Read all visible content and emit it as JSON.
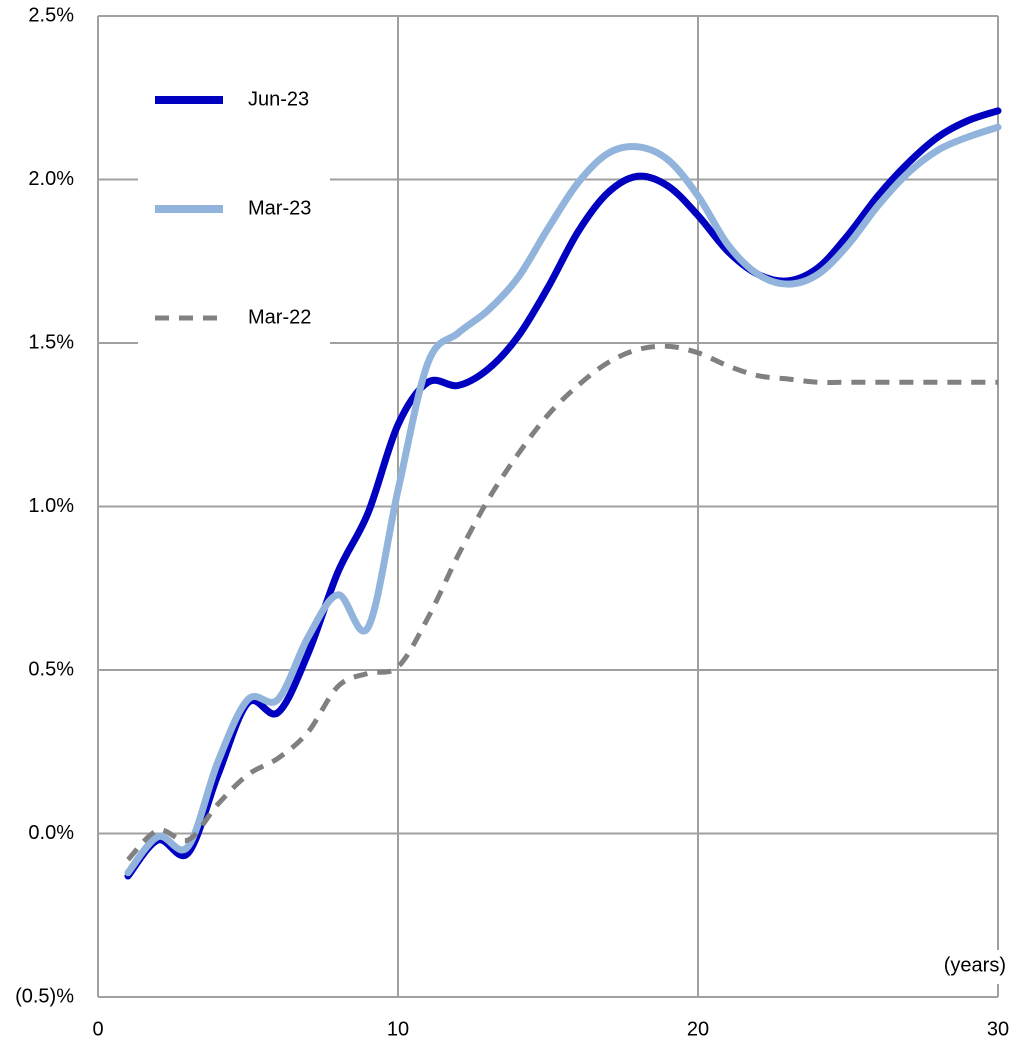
{
  "chart_data": {
    "type": "line",
    "x_label": "(years)",
    "x": [
      1,
      2,
      3,
      4,
      5,
      6,
      7,
      8,
      9,
      10,
      11,
      12,
      13,
      14,
      15,
      16,
      17,
      18,
      19,
      20,
      21,
      22,
      23,
      24,
      25,
      26,
      27,
      28,
      29,
      30
    ],
    "series": [
      {
        "name": "Jun-23",
        "color": "#0000c0",
        "line_style": "solid",
        "values": [
          -0.13,
          -0.02,
          -0.06,
          0.18,
          0.4,
          0.37,
          0.55,
          0.8,
          0.98,
          1.25,
          1.38,
          1.37,
          1.42,
          1.52,
          1.67,
          1.84,
          1.96,
          2.01,
          1.98,
          1.89,
          1.78,
          1.71,
          1.69,
          1.73,
          1.83,
          1.95,
          2.05,
          2.13,
          2.18,
          2.21
        ]
      },
      {
        "name": "Mar-23",
        "color": "#92b4dc",
        "line_style": "solid",
        "values": [
          -0.12,
          -0.01,
          -0.04,
          0.22,
          0.41,
          0.41,
          0.6,
          0.73,
          0.63,
          1.05,
          1.44,
          1.53,
          1.6,
          1.7,
          1.85,
          1.99,
          2.08,
          2.1,
          2.06,
          1.95,
          1.8,
          1.71,
          1.68,
          1.71,
          1.8,
          1.92,
          2.02,
          2.09,
          2.13,
          2.16
        ]
      },
      {
        "name": "Mar-22",
        "color": "#808080",
        "line_style": "dashed",
        "values": [
          -0.08,
          0.01,
          -0.02,
          0.09,
          0.18,
          0.23,
          0.31,
          0.45,
          0.49,
          0.51,
          0.66,
          0.85,
          1.02,
          1.16,
          1.28,
          1.37,
          1.44,
          1.48,
          1.49,
          1.47,
          1.43,
          1.4,
          1.39,
          1.38,
          1.38,
          1.38,
          1.38,
          1.38,
          1.38,
          1.38
        ]
      }
    ],
    "xlim": [
      0,
      30
    ],
    "xticks": [
      0,
      10,
      20,
      30
    ],
    "ylim": [
      -0.5,
      2.5
    ],
    "yticks": [
      {
        "value": -0.5,
        "label": "(0.5)%"
      },
      {
        "value": 0.0,
        "label": "0.0%"
      },
      {
        "value": 0.5,
        "label": "0.5%"
      },
      {
        "value": 1.0,
        "label": "1.0%"
      },
      {
        "value": 1.5,
        "label": "1.5%"
      },
      {
        "value": 2.0,
        "label": "2.0%"
      },
      {
        "value": 2.5,
        "label": "2.5%"
      }
    ],
    "grid": true,
    "legend": "upper-left"
  }
}
